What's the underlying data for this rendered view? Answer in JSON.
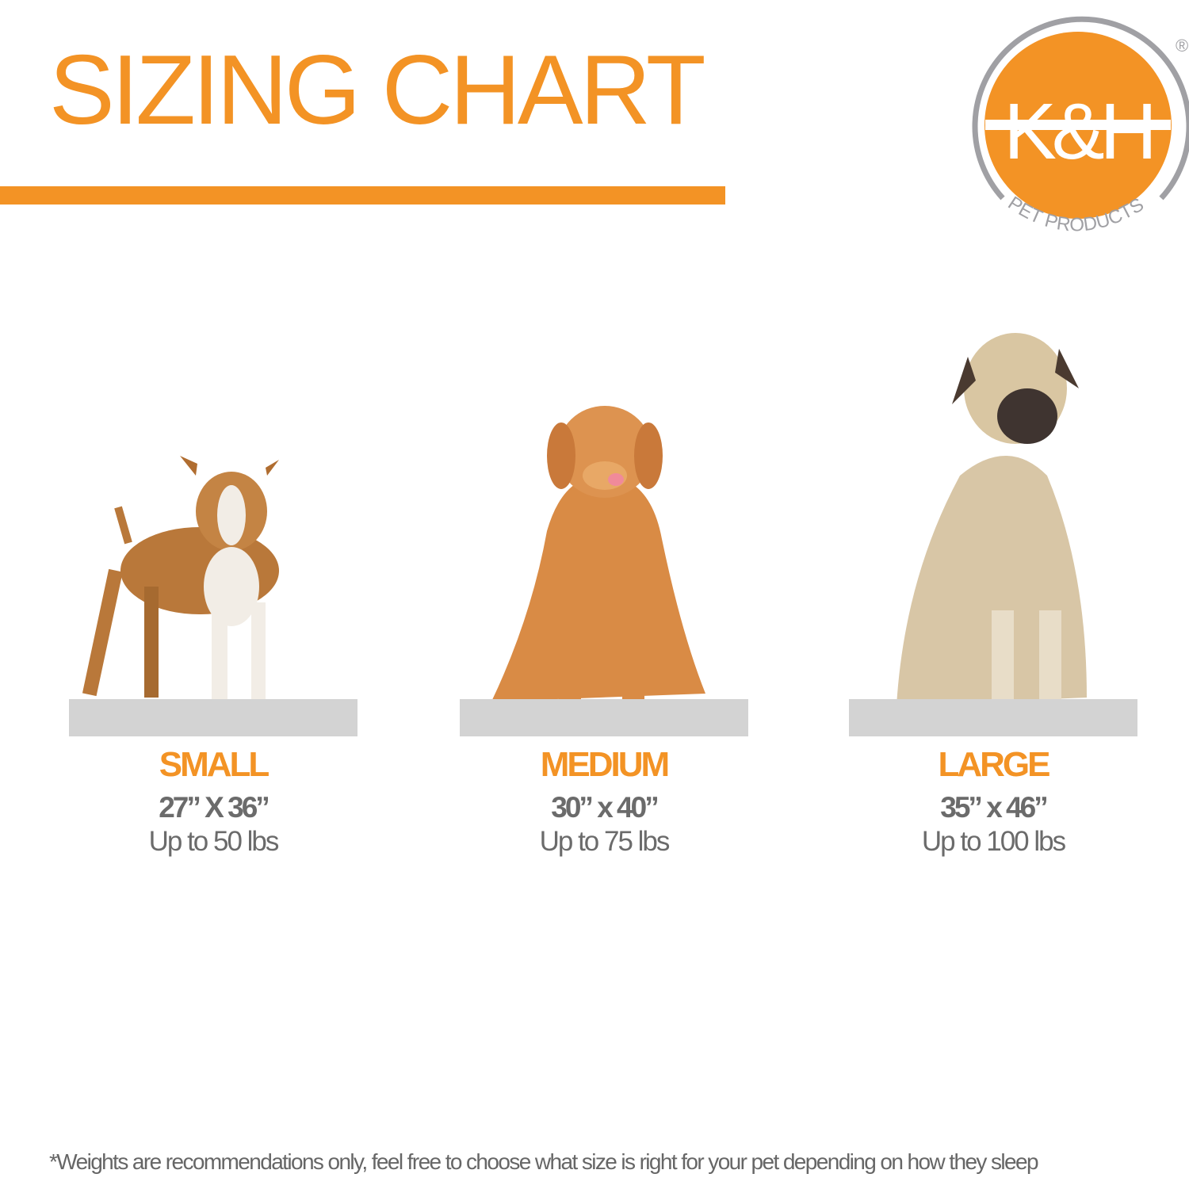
{
  "title": "SIZING CHART",
  "logo": {
    "text": "K&H",
    "subtext": "PET PRODUCTS",
    "registered": "®"
  },
  "colors": {
    "accent": "#f39325",
    "text_gray": "#6b6b6b",
    "platform_gray": "#d3d3d3",
    "logo_ring": "#a0a0a4"
  },
  "sizes": [
    {
      "label": "SMALL",
      "dimensions": "27” X 36”",
      "weight": "Up to 50 lbs",
      "image": "pit-bull-terrier-standing"
    },
    {
      "label": "MEDIUM",
      "dimensions": "30” x 40”",
      "weight": "Up to 75 lbs",
      "image": "golden-retriever-sitting"
    },
    {
      "label": "LARGE",
      "dimensions": "35” x 46”",
      "weight": "Up to 100 lbs",
      "image": "mastiff-sitting"
    }
  ],
  "footnote": "*Weights are recommendations only, feel free to choose what size is right for your pet depending on how they sleep"
}
